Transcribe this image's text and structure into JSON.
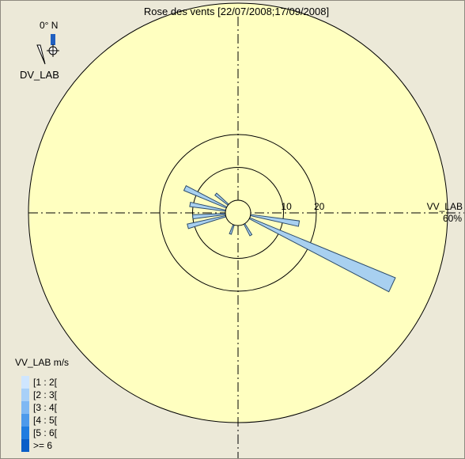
{
  "title": "Rose des vents [22/07/2008;17/09/2008]",
  "compass": {
    "north_label": "0° N",
    "direction_variable": "DV_LAB"
  },
  "speed_variable_label": "VV_LAB",
  "max_percent_label": "60%",
  "colors": {
    "background": "#ece9d8",
    "disc": "#ffffc0",
    "petal": "#a8d0f0",
    "petal_outline": "#2a4a6a"
  },
  "legend": {
    "title": "VV_LAB m/s",
    "items": [
      {
        "label": "[1 : 2[",
        "color": "#cfe6ff"
      },
      {
        "label": "[2 : 3[",
        "color": "#a8d0f8"
      },
      {
        "label": "[3 : 4[",
        "color": "#7fb8f3"
      },
      {
        "label": "[4 : 5[",
        "color": "#4d9aeb"
      },
      {
        "label": "[5 : 6[",
        "color": "#1f7ce0"
      },
      {
        "label": ">= 6",
        "color": "#0a5ec8"
      }
    ]
  },
  "chart_data": {
    "type": "wind-rose",
    "radial_unit": "%",
    "radial_max": 60,
    "rings": [
      10,
      20,
      60
    ],
    "ring_labels": [
      "10",
      "20"
    ],
    "petals": [
      {
        "direction_deg": 115,
        "percent": 48
      },
      {
        "direction_deg": 100,
        "percent": 15
      },
      {
        "direction_deg": 150,
        "percent": 4
      },
      {
        "direction_deg": 255,
        "percent": 12
      },
      {
        "direction_deg": 265,
        "percent": 10
      },
      {
        "direction_deg": 280,
        "percent": 11
      },
      {
        "direction_deg": 295,
        "percent": 14
      },
      {
        "direction_deg": 310,
        "percent": 5
      },
      {
        "direction_deg": 200,
        "percent": 3
      }
    ]
  }
}
